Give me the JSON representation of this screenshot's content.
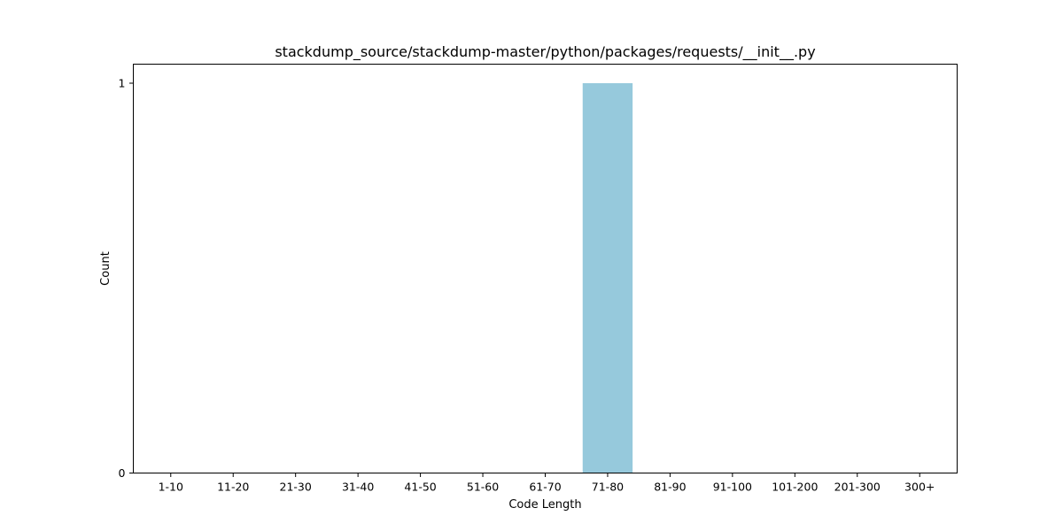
{
  "chart_data": {
    "type": "bar",
    "title": "stackdump_source/stackdump-master/python/packages/requests/__init__.py",
    "xlabel": "Code Length",
    "ylabel": "Count",
    "categories": [
      "1-10",
      "11-20",
      "21-30",
      "31-40",
      "41-50",
      "51-60",
      "61-70",
      "71-80",
      "81-90",
      "91-100",
      "101-200",
      "201-300",
      "300+"
    ],
    "values": [
      0,
      0,
      0,
      0,
      0,
      0,
      0,
      1,
      0,
      0,
      0,
      0,
      0
    ],
    "ylim": [
      0,
      1
    ],
    "yticks": [
      0,
      1
    ],
    "grid": false,
    "legend": "none",
    "colors": {
      "bar": "#96c9dc",
      "axis": "#000000",
      "background": "#ffffff"
    }
  }
}
